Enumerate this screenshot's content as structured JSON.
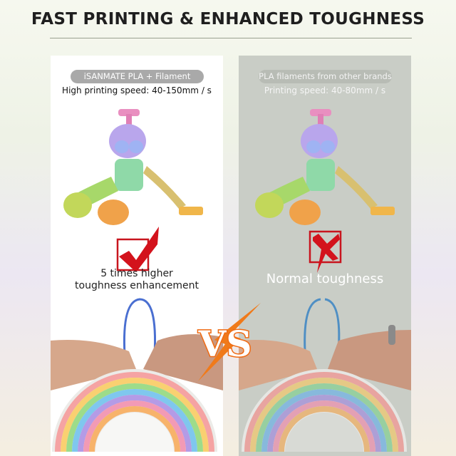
{
  "title": "FAST PRINTING & ENHANCED TOUGHNESS",
  "left_panel": {
    "badge": "iSANMATE PLA + Filament",
    "speed": "High printing speed: 40-150mm / s",
    "verdict_icon": "checkmark-icon",
    "verdict_line1": "5 times higher",
    "verdict_line2": "toughness enhancement",
    "background": "#ffffff"
  },
  "right_panel": {
    "badge": "PLA filaments from other brands",
    "speed": "Printing speed: 40-80mm / s",
    "verdict_icon": "cross-icon",
    "verdict": "Normal toughness",
    "background": "#c9cdc6"
  },
  "vs_label": "VS",
  "colors": {
    "accent_red": "#d3121c",
    "vs_orange": "#f07a1a"
  }
}
